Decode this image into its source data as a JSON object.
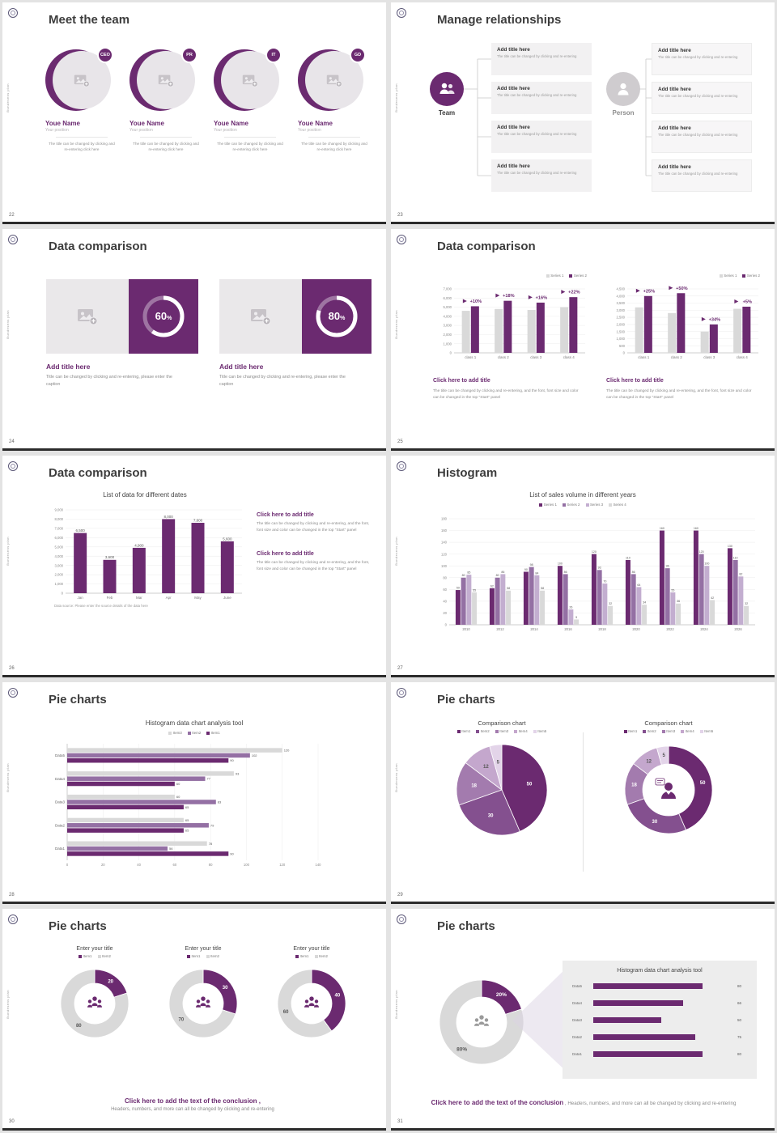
{
  "common": {
    "vertical_text": "Bundesens plan",
    "accent": "#6b2a70"
  },
  "s22": {
    "number": "22",
    "title": "Meet the team",
    "caption": "The title can be changed by clicking and re-entering click here",
    "members": [
      {
        "badge": "CEO",
        "name": "Youe Name",
        "position": "Your position"
      },
      {
        "badge": "PR",
        "name": "Youe Name",
        "position": "Your position"
      },
      {
        "badge": "IT",
        "name": "Youe Name",
        "position": "Your position"
      },
      {
        "badge": "GD",
        "name": "Youe Name",
        "position": "Your position"
      }
    ]
  },
  "s23": {
    "number": "23",
    "title": "Manage relationships",
    "team_label": "Team",
    "person_label": "Person",
    "item_title": "Add title here",
    "item_caption": "The title can be changed by clicking and re-entering"
  },
  "s24": {
    "number": "24",
    "title": "Data comparison",
    "card_title": "Add title here",
    "card_caption": "Title can be changed by clicking and re-entering, please enter the caption",
    "cards": [
      {
        "percent": 60
      },
      {
        "percent": 80
      }
    ]
  },
  "s25": {
    "number": "25",
    "title": "Data comparison",
    "cta": "Click here to add title",
    "caption": "The title can be changed by clicking and re-entering, and the font, font size and color can be changed in the top \"Start\" panel",
    "panels": [
      {
        "chart": {
          "type": "bar",
          "categories": [
            "class 1",
            "class 2",
            "class 3",
            "class 4"
          ],
          "series": [
            {
              "name": "Series 1",
              "color": "#d9d9d9",
              "values": [
                4600,
                4800,
                4700,
                5000
              ]
            },
            {
              "name": "Series 2",
              "color": "#6b2a70",
              "values": [
                5100,
                5700,
                5500,
                6100
              ]
            }
          ],
          "group_labels": [
            "+10%",
            "+18%",
            "+16%",
            "+22%"
          ],
          "ylim": [
            0,
            7000
          ],
          "ystep": 1000
        }
      },
      {
        "chart": {
          "type": "bar",
          "categories": [
            "class 1",
            "class 2",
            "class 3",
            "class 4"
          ],
          "series": [
            {
              "name": "Series 1",
              "color": "#d9d9d9",
              "values": [
                3200,
                2800,
                1500,
                3100
              ]
            },
            {
              "name": "Series 2",
              "color": "#6b2a70",
              "values": [
                4000,
                4200,
                2000,
                3250
              ]
            }
          ],
          "group_labels": [
            "+25%",
            "+50%",
            "+34%",
            "+5%"
          ],
          "ylim": [
            0,
            4500
          ],
          "ystep": 500
        }
      }
    ]
  },
  "s26": {
    "number": "26",
    "title": "Data comparison",
    "source_note": "Data source: Please enter the source details of the data here",
    "cta": "Click here to add title",
    "caption": "The title can be changed by clicking and re-entering, and the font, font size and color can be changed in the top \"Start\" panel",
    "chart": {
      "type": "bar",
      "title": "List of data for different dates",
      "categories": [
        "Jan",
        "Feb",
        "Mar",
        "Apr",
        "May",
        "June"
      ],
      "series": [
        {
          "name": "Data",
          "color": "#6b2a70",
          "values": [
            6500,
            3600,
            4900,
            8000,
            7600,
            5600
          ]
        }
      ],
      "ylim": [
        0,
        9000
      ],
      "ystep": 1000,
      "data_labels": true,
      "barw": 16,
      "labelSize": 4.5
    }
  },
  "s27": {
    "number": "27",
    "title": "Histogram",
    "chart": {
      "type": "bar",
      "title": "List of sales volume in different years",
      "categories": [
        "2010",
        "2012",
        "2014",
        "2016",
        "2018",
        "2020",
        "2022",
        "2024",
        "2026"
      ],
      "series": [
        {
          "name": "Series 1",
          "color": "#6b2a70",
          "values": [
            59,
            62,
            90,
            100,
            120,
            110,
            160,
            160,
            130
          ]
        },
        {
          "name": "Series 2",
          "color": "#9470a4",
          "values": [
            80,
            80,
            98,
            86,
            93,
            86,
            96,
            120,
            110
          ]
        },
        {
          "name": "Series 3",
          "color": "#c3aed0",
          "values": [
            85,
            86,
            84,
            26,
            70,
            64,
            55,
            100,
            82
          ]
        },
        {
          "name": "Series 4",
          "color": "#d9d9d9",
          "values": [
            55,
            58,
            58,
            9,
            32,
            34,
            36,
            42,
            32
          ]
        }
      ],
      "ylim": [
        0,
        180
      ],
      "ystep": 20,
      "data_labels": true,
      "barw": 6,
      "labelSize": 3.6,
      "catSize": 4.2
    }
  },
  "s28": {
    "number": "28",
    "title": "Pie charts",
    "chart": {
      "type": "hbar",
      "title": "Histogram data chart analysis tool",
      "categories": [
        "Data5",
        "Data4",
        "Data3",
        "Data2",
        "Data1"
      ],
      "series": [
        {
          "name": "Item3",
          "color": "#d9d9d9",
          "values": [
            120,
            93,
            60,
            65,
            78
          ]
        },
        {
          "name": "Item2",
          "color": "#9470a4",
          "values": [
            102,
            77,
            83,
            79,
            56
          ]
        },
        {
          "name": "Item1",
          "color": "#6b2a70",
          "values": [
            90,
            60,
            65,
            65,
            90
          ]
        }
      ],
      "xlim": [
        0,
        140
      ],
      "xstep": 20,
      "data_labels": true,
      "barh": 5.5,
      "padL": 24,
      "padR": 18
    }
  },
  "s29": {
    "number": "29",
    "title": "Pie charts",
    "left": {
      "title": "Comparison chart",
      "chart": {
        "type": "pie",
        "labels": [
          "Item1",
          "Item2",
          "Item3",
          "Item4",
          "Item5"
        ],
        "values": [
          50,
          30,
          18,
          12,
          5
        ],
        "colors": [
          "#6b2a70",
          "#84508f",
          "#a37bae",
          "#c4a7cd",
          "#e3d4e9"
        ],
        "r1": 56,
        "labelSize": 6
      }
    },
    "right": {
      "title": "Comparison chart",
      "chart": {
        "type": "donut",
        "labels": [
          "Item1",
          "Item2",
          "Item3",
          "Item4",
          "Item5"
        ],
        "values": [
          50,
          30,
          18,
          12,
          5
        ],
        "colors": [
          "#6b2a70",
          "#84508f",
          "#a37bae",
          "#c4a7cd",
          "#e3d4e9"
        ],
        "r1": 54,
        "r0": 32,
        "icon": "businessman",
        "icon_color": "#6b2a70",
        "labelSize": 6
      }
    }
  },
  "s30": {
    "number": "30",
    "title": "Pie charts",
    "conclusion_line1": "Click here to add the text of the conclusion ,",
    "conclusion_line2": "Headers, numbers, and more can all be changed by clicking and re-entering",
    "charts": [
      {
        "title": "Enter your title",
        "chart": {
          "type": "donut",
          "labels": [
            "Item1",
            "Item2"
          ],
          "values": [
            20,
            80
          ],
          "colors": [
            "#6b2a70",
            "#d9d9d9"
          ],
          "r1": 42,
          "r0": 25,
          "icon": "people",
          "icon_color": "#6b2a70",
          "labelSize": 6
        }
      },
      {
        "title": "Enter your title",
        "chart": {
          "type": "donut",
          "labels": [
            "Item1",
            "Item2"
          ],
          "values": [
            30,
            70
          ],
          "colors": [
            "#6b2a70",
            "#d9d9d9"
          ],
          "r1": 42,
          "r0": 25,
          "icon": "people",
          "icon_color": "#6b2a70",
          "labelSize": 6
        }
      },
      {
        "title": "Enter your title",
        "chart": {
          "type": "donut",
          "labels": [
            "Item1",
            "Item2"
          ],
          "values": [
            40,
            60
          ],
          "colors": [
            "#6b2a70",
            "#d9d9d9"
          ],
          "r1": 42,
          "r0": 25,
          "icon": "people",
          "icon_color": "#6b2a70",
          "labelSize": 6
        }
      }
    ]
  },
  "s31": {
    "number": "31",
    "title": "Pie charts",
    "chart": {
      "type": "donut",
      "labels": [
        "20%",
        "80%"
      ],
      "values": [
        20,
        80
      ],
      "value_labels": [
        "20%",
        "80%"
      ],
      "colors": [
        "#6b2a70",
        "#d9d9d9"
      ],
      "r1": 52,
      "r0": 31,
      "icon": "people",
      "icon_color": "#9a9a9a",
      "labelSize": 6.5
    },
    "panel": {
      "title": "Histogram data chart analysis tool",
      "max": 104,
      "rows": [
        {
          "label": "Data5",
          "value": 80
        },
        {
          "label": "Data4",
          "value": 66
        },
        {
          "label": "Data3",
          "value": 50
        },
        {
          "label": "Data2",
          "value": 75
        },
        {
          "label": "Data1",
          "value": 80
        }
      ]
    },
    "conclusion_bold": "Click here to add the text of the conclusion",
    "conclusion_rest": " ,  Headers, numbers, and more can all be changed by clicking and re-entering"
  }
}
